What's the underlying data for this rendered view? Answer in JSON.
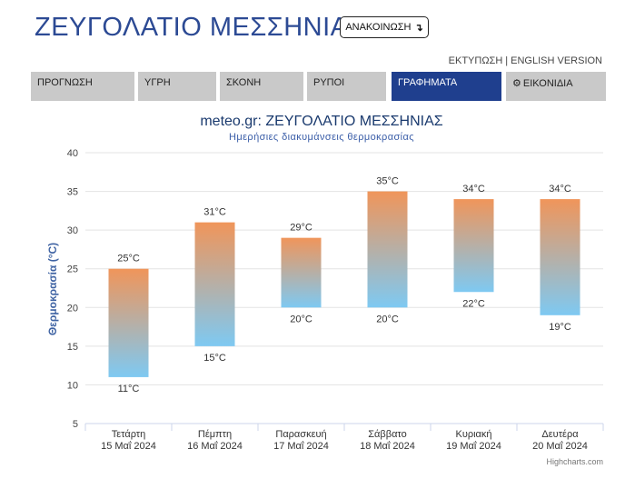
{
  "header": {
    "title": "ΖΕΥΓΟΛΑΤΙΟ ΜΕΣΣΗΝΙΑΣ",
    "announce_label": "ΑΝΑΚΟΙΝΩΣΗ",
    "announce_icon": "arrow-down-icon",
    "print_label": "ΕΚΤΥΠΩΣΗ",
    "link_separator": "|",
    "english_label": "ENGLISH VERSION"
  },
  "tabs": [
    {
      "label": "ΠΡΟΓΝΩΣΗ",
      "active": false
    },
    {
      "label": "ΥΓΡΗ",
      "active": false
    },
    {
      "label": "ΣΚΟΝΗ",
      "active": false
    },
    {
      "label": "ΡΥΠΟΙ",
      "active": false
    },
    {
      "label": "ΓΡΑΦΗΜΑΤΑ",
      "active": true
    },
    {
      "label": "ΕΙΚΟΝΙΔΙΑ",
      "active": false,
      "icon": "gear-icon"
    }
  ],
  "colors": {
    "title": "#2c4a94",
    "tab_bg": "#c9c9c9",
    "tab_active_bg": "#1f3f8e",
    "bar_top": "#f0955a",
    "bar_bottom": "#7ec9f2"
  },
  "chart_data": {
    "type": "bar",
    "subtype": "columnrange",
    "title": "meteo.gr: ΖΕΥΓΟΛΑΤΙΟ ΜΕΣΣΗΝΙΑΣ",
    "subtitle": "Ημερήσιες διακυμάνσεις θερμοκρασίας",
    "ylabel": "Θερμοκρασία (°C)",
    "xlabel": "",
    "ylim": [
      5,
      40
    ],
    "yticks": [
      5,
      10,
      15,
      20,
      25,
      30,
      35,
      40
    ],
    "grid": true,
    "unit": "°C",
    "categories": [
      {
        "day": "Τετάρτη",
        "date": "15 Μαΐ 2024"
      },
      {
        "day": "Πέμπτη",
        "date": "16 Μαΐ 2024"
      },
      {
        "day": "Παρασκευή",
        "date": "17 Μαΐ 2024"
      },
      {
        "day": "Σάββατο",
        "date": "18 Μαΐ 2024"
      },
      {
        "day": "Κυριακή",
        "date": "19 Μαΐ 2024"
      },
      {
        "day": "Δευτέρα",
        "date": "20 Μαΐ 2024"
      }
    ],
    "series": [
      {
        "low": [
          11,
          15,
          20,
          20,
          22,
          19
        ],
        "high": [
          25,
          31,
          29,
          35,
          34,
          34
        ]
      }
    ],
    "credit": "Highcharts.com"
  }
}
